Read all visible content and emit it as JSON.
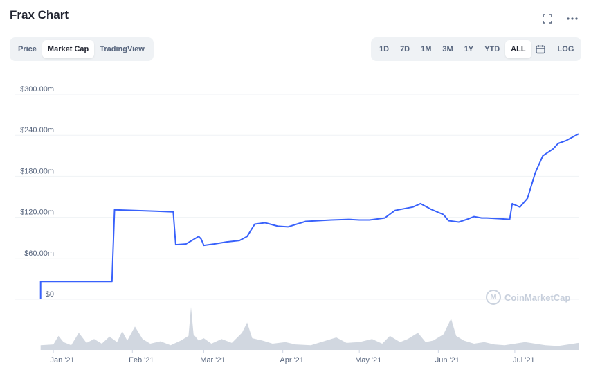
{
  "header": {
    "title": "Frax Chart",
    "fullscreen_icon": "fullscreen-icon",
    "more_icon": "more-icon"
  },
  "view_tabs": [
    {
      "label": "Price",
      "active": false
    },
    {
      "label": "Market Cap",
      "active": true
    },
    {
      "label": "TradingView",
      "active": false
    }
  ],
  "range_tabs": [
    {
      "label": "1D",
      "active": false
    },
    {
      "label": "7D",
      "active": false
    },
    {
      "label": "1M",
      "active": false
    },
    {
      "label": "3M",
      "active": false
    },
    {
      "label": "1Y",
      "active": false
    },
    {
      "label": "YTD",
      "active": false
    },
    {
      "label": "ALL",
      "active": true
    }
  ],
  "calendar_icon": "calendar-icon",
  "log_label": "LOG",
  "watermark": "CoinMarketCap",
  "colors": {
    "line": "#3861fb",
    "volume": "#c2c9d6",
    "grid": "#eff2f5",
    "axis_text": "#58667e"
  },
  "chart_data": {
    "type": "line",
    "title": "",
    "xlabel": "",
    "ylabel": "",
    "yticks": [
      "$0",
      "$60.00m",
      "$120.00m",
      "$180.00m",
      "$240.00m",
      "$300.00m"
    ],
    "ytick_values": [
      0,
      60,
      120,
      180,
      240,
      300
    ],
    "ylim": [
      0,
      300
    ],
    "xlim": [
      "2020-12-26",
      "2021-07-26"
    ],
    "xticks": [
      {
        "date": "2021-01-01",
        "label": "Jan '21"
      },
      {
        "date": "2021-02-01",
        "label": "Feb '21"
      },
      {
        "date": "2021-03-01",
        "label": "Mar '21"
      },
      {
        "date": "2021-04-01",
        "label": "Apr '21"
      },
      {
        "date": "2021-05-01",
        "label": "May '21"
      },
      {
        "date": "2021-06-01",
        "label": "Jun '21"
      },
      {
        "date": "2021-07-01",
        "label": "Jul '21"
      }
    ],
    "grid": true,
    "series": [
      {
        "points": [
          [
            "2020-12-27",
            1
          ],
          [
            "2020-12-27",
            26
          ],
          [
            "2021-01-24",
            26
          ],
          [
            "2021-01-25",
            131
          ],
          [
            "2021-02-10",
            129
          ],
          [
            "2021-02-17",
            128
          ],
          [
            "2021-02-18",
            80
          ],
          [
            "2021-02-22",
            81
          ],
          [
            "2021-02-27",
            92
          ],
          [
            "2021-02-28",
            88
          ],
          [
            "2021-03-01",
            79
          ],
          [
            "2021-03-05",
            81
          ],
          [
            "2021-03-10",
            84
          ],
          [
            "2021-03-15",
            86
          ],
          [
            "2021-03-18",
            92
          ],
          [
            "2021-03-21",
            110
          ],
          [
            "2021-03-25",
            112
          ],
          [
            "2021-03-30",
            107
          ],
          [
            "2021-04-03",
            106
          ],
          [
            "2021-04-10",
            114
          ],
          [
            "2021-04-20",
            116
          ],
          [
            "2021-04-27",
            117
          ],
          [
            "2021-05-01",
            116
          ],
          [
            "2021-05-05",
            116
          ],
          [
            "2021-05-11",
            119
          ],
          [
            "2021-05-15",
            130
          ],
          [
            "2021-05-22",
            135
          ],
          [
            "2021-05-25",
            140
          ],
          [
            "2021-05-29",
            132
          ],
          [
            "2021-06-03",
            124
          ],
          [
            "2021-06-05",
            115
          ],
          [
            "2021-06-09",
            113
          ],
          [
            "2021-06-13",
            118
          ],
          [
            "2021-06-15",
            121
          ],
          [
            "2021-06-18",
            119
          ],
          [
            "2021-06-20",
            119
          ],
          [
            "2021-06-25",
            118
          ],
          [
            "2021-06-29",
            117
          ],
          [
            "2021-06-30",
            140
          ],
          [
            "2021-07-03",
            135
          ],
          [
            "2021-07-06",
            148
          ],
          [
            "2021-07-09",
            185
          ],
          [
            "2021-07-12",
            210
          ],
          [
            "2021-07-16",
            220
          ],
          [
            "2021-07-18",
            228
          ],
          [
            "2021-07-21",
            232
          ],
          [
            "2021-07-24",
            238
          ],
          [
            "2021-07-26",
            242
          ]
        ]
      }
    ],
    "volume": {
      "points": [
        [
          "2020-12-27",
          6
        ],
        [
          "2021-01-01",
          7
        ],
        [
          "2021-01-03",
          18
        ],
        [
          "2021-01-05",
          10
        ],
        [
          "2021-01-08",
          6
        ],
        [
          "2021-01-11",
          22
        ],
        [
          "2021-01-14",
          9
        ],
        [
          "2021-01-17",
          14
        ],
        [
          "2021-01-20",
          8
        ],
        [
          "2021-01-23",
          17
        ],
        [
          "2021-01-26",
          10
        ],
        [
          "2021-01-28",
          24
        ],
        [
          "2021-01-30",
          12
        ],
        [
          "2021-02-02",
          30
        ],
        [
          "2021-02-05",
          14
        ],
        [
          "2021-02-08",
          8
        ],
        [
          "2021-02-12",
          11
        ],
        [
          "2021-02-16",
          6
        ],
        [
          "2021-02-20",
          12
        ],
        [
          "2021-02-23",
          18
        ],
        [
          "2021-02-24",
          55
        ],
        [
          "2021-02-25",
          20
        ],
        [
          "2021-02-27",
          12
        ],
        [
          "2021-03-01",
          15
        ],
        [
          "2021-03-04",
          8
        ],
        [
          "2021-03-08",
          14
        ],
        [
          "2021-03-12",
          9
        ],
        [
          "2021-03-16",
          22
        ],
        [
          "2021-03-18",
          35
        ],
        [
          "2021-03-20",
          15
        ],
        [
          "2021-03-24",
          12
        ],
        [
          "2021-03-28",
          8
        ],
        [
          "2021-04-02",
          10
        ],
        [
          "2021-04-06",
          7
        ],
        [
          "2021-04-12",
          6
        ],
        [
          "2021-04-18",
          12
        ],
        [
          "2021-04-22",
          16
        ],
        [
          "2021-04-26",
          9
        ],
        [
          "2021-05-01",
          10
        ],
        [
          "2021-05-06",
          14
        ],
        [
          "2021-05-10",
          8
        ],
        [
          "2021-05-13",
          18
        ],
        [
          "2021-05-17",
          10
        ],
        [
          "2021-05-20",
          14
        ],
        [
          "2021-05-24",
          22
        ],
        [
          "2021-05-27",
          10
        ],
        [
          "2021-05-30",
          12
        ],
        [
          "2021-06-03",
          20
        ],
        [
          "2021-06-06",
          40
        ],
        [
          "2021-06-08",
          18
        ],
        [
          "2021-06-11",
          12
        ],
        [
          "2021-06-15",
          8
        ],
        [
          "2021-06-19",
          10
        ],
        [
          "2021-06-23",
          7
        ],
        [
          "2021-06-27",
          6
        ],
        [
          "2021-07-01",
          8
        ],
        [
          "2021-07-05",
          10
        ],
        [
          "2021-07-09",
          8
        ],
        [
          "2021-07-13",
          6
        ],
        [
          "2021-07-18",
          5
        ],
        [
          "2021-07-22",
          7
        ],
        [
          "2021-07-26",
          9
        ]
      ]
    }
  }
}
